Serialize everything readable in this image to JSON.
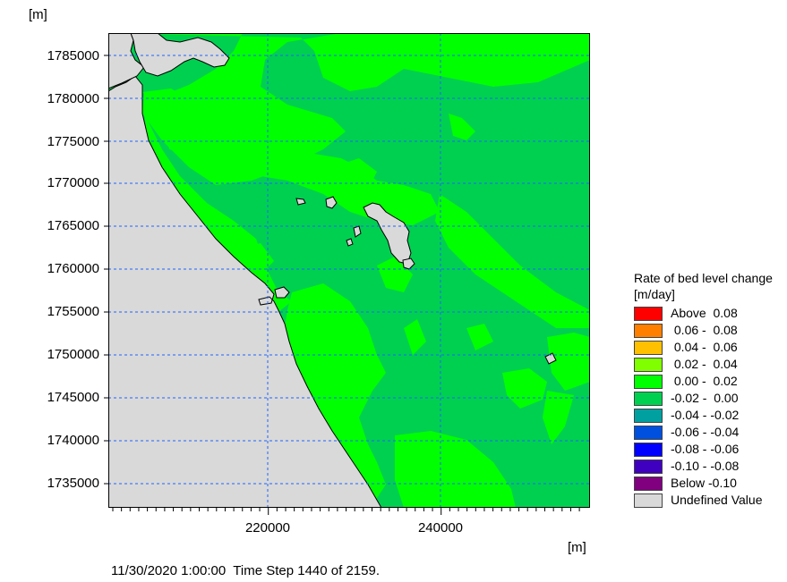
{
  "axes": {
    "x_unit": "[m]",
    "y_unit": "[m]",
    "y_ticks": [
      "1785000",
      "1780000",
      "1775000",
      "1770000",
      "1765000",
      "1760000",
      "1755000",
      "1750000",
      "1745000",
      "1740000",
      "1735000"
    ],
    "x_ticks": [
      "220000",
      "240000"
    ]
  },
  "status": {
    "datetime": "11/30/2020 1:00:00",
    "step_text": "Time Step 1440 of 2159."
  },
  "legend": {
    "title": "Rate of bed level change",
    "unit": "[m/day]",
    "items": [
      {
        "label": "Above  0.08",
        "color": "#ff0000"
      },
      {
        "label": " 0.06 -  0.08",
        "color": "#ff7f00"
      },
      {
        "label": " 0.04 -  0.06",
        "color": "#ffc000"
      },
      {
        "label": " 0.02 -  0.04",
        "color": "#80ff00"
      },
      {
        "label": " 0.00 -  0.02",
        "color": "#00ff00"
      },
      {
        "label": "-0.02 -  0.00",
        "color": "#00d050"
      },
      {
        "label": "-0.04 - -0.02",
        "color": "#00a0a0"
      },
      {
        "label": "-0.06 - -0.04",
        "color": "#0050e0"
      },
      {
        "label": "-0.08 - -0.06",
        "color": "#0000ff"
      },
      {
        "label": "-0.10 - -0.08",
        "color": "#4000c0"
      },
      {
        "label": "Below -0.10",
        "color": "#800080"
      },
      {
        "label": "Undefined Value",
        "color": "#d9d9d9"
      }
    ]
  }
}
